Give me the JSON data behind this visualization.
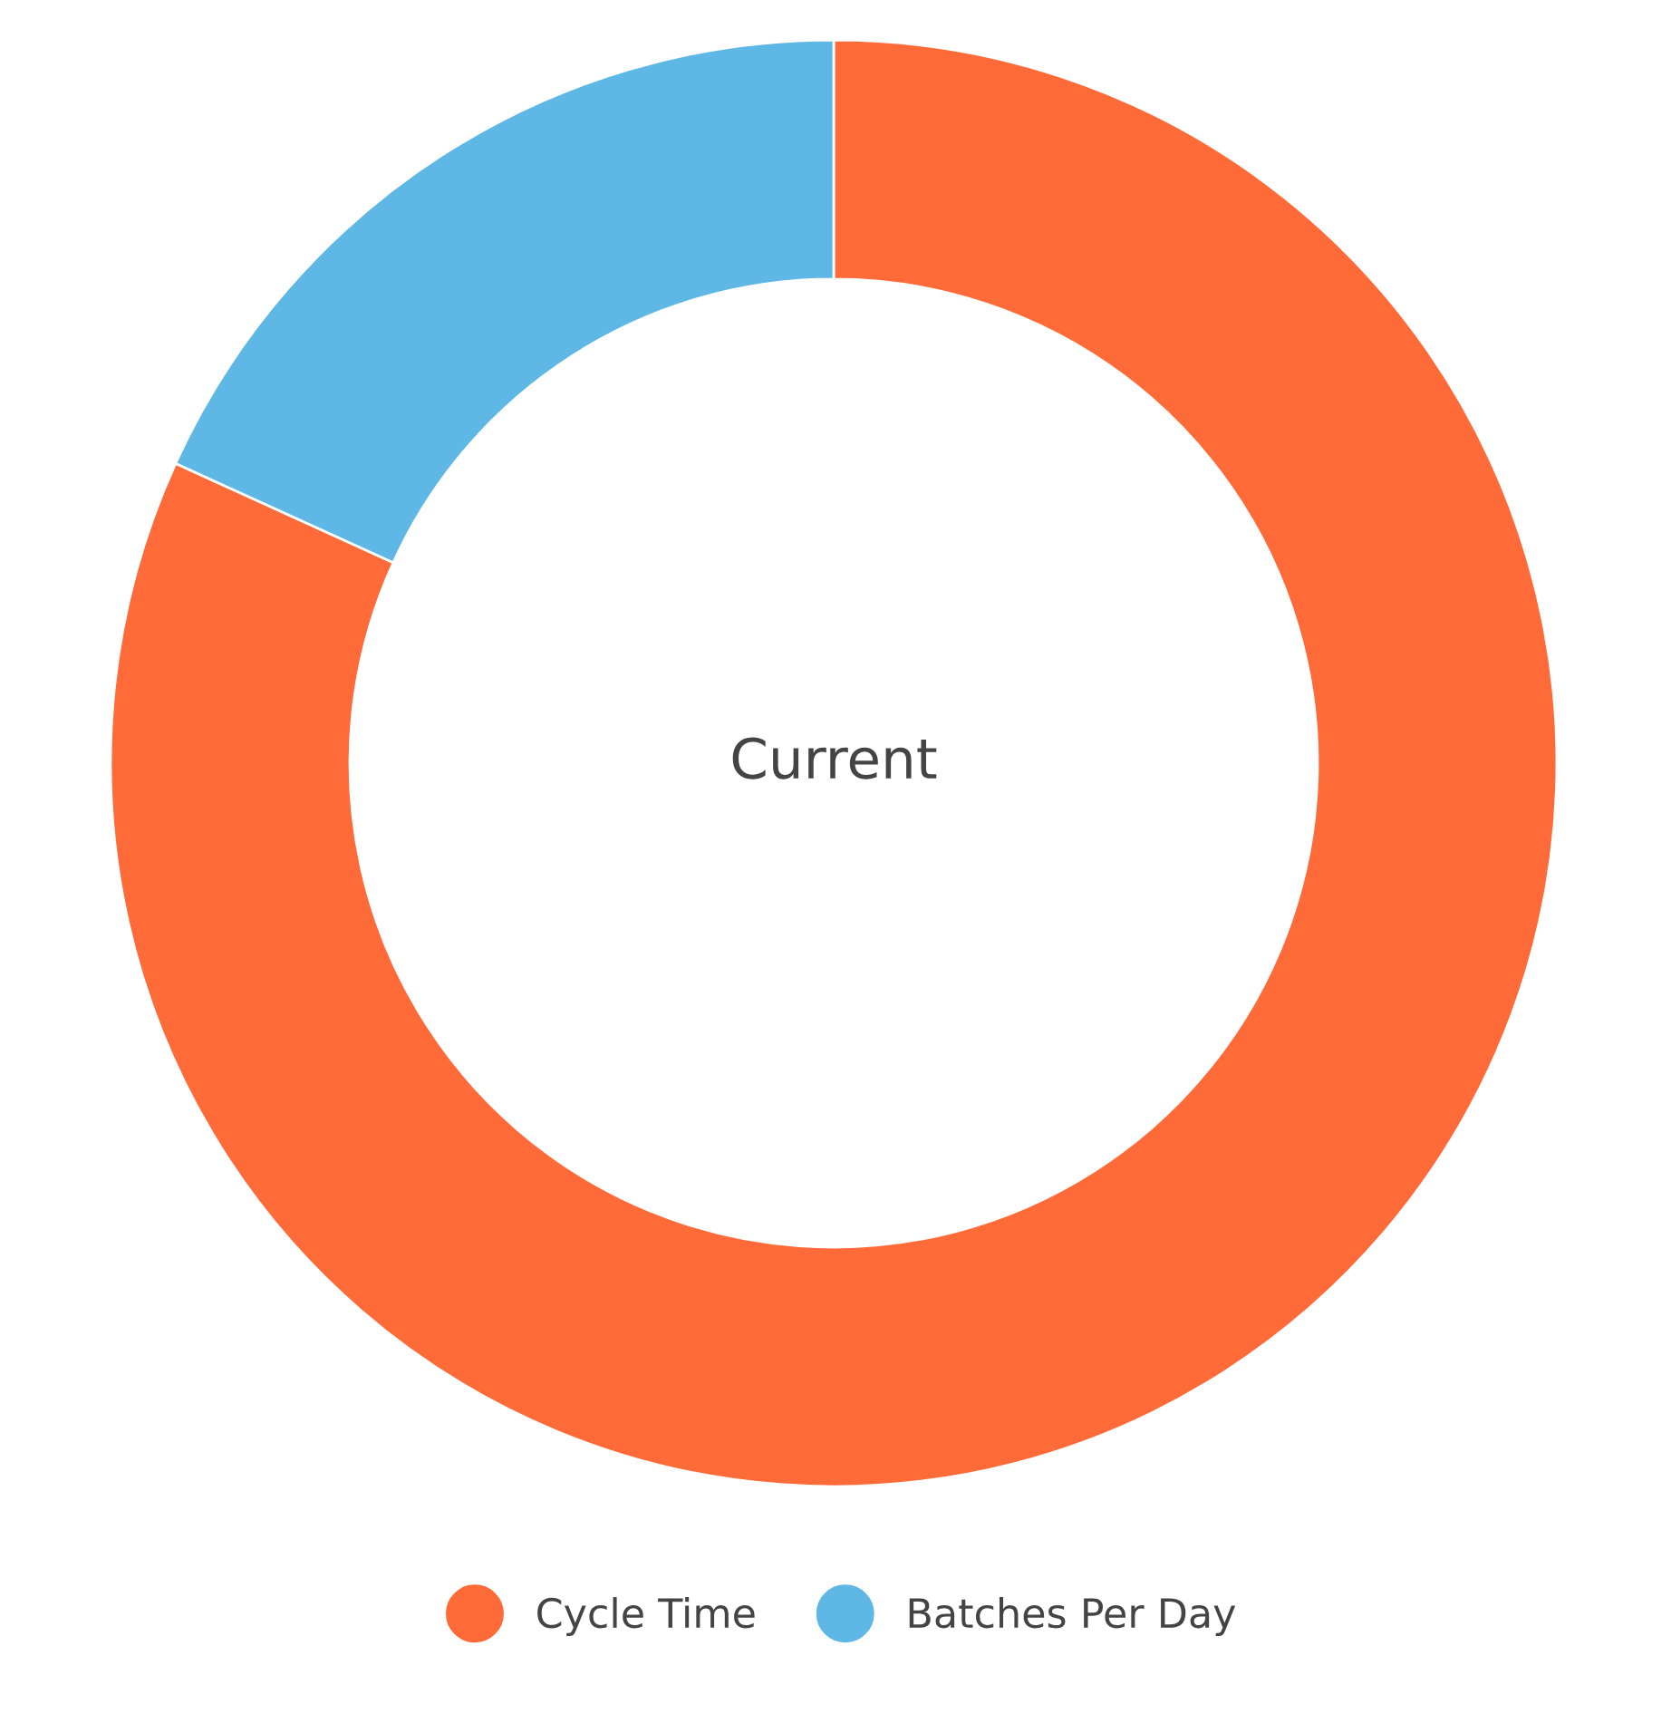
{
  "chart_data": {
    "type": "donut",
    "title": "Current",
    "categories": [
      "Cycle Time",
      "Batches Per Day"
    ],
    "values": [
      81.8,
      18.2
    ],
    "colors": [
      "#ff6a39",
      "#5eb7e5"
    ],
    "legend": "bottom"
  }
}
